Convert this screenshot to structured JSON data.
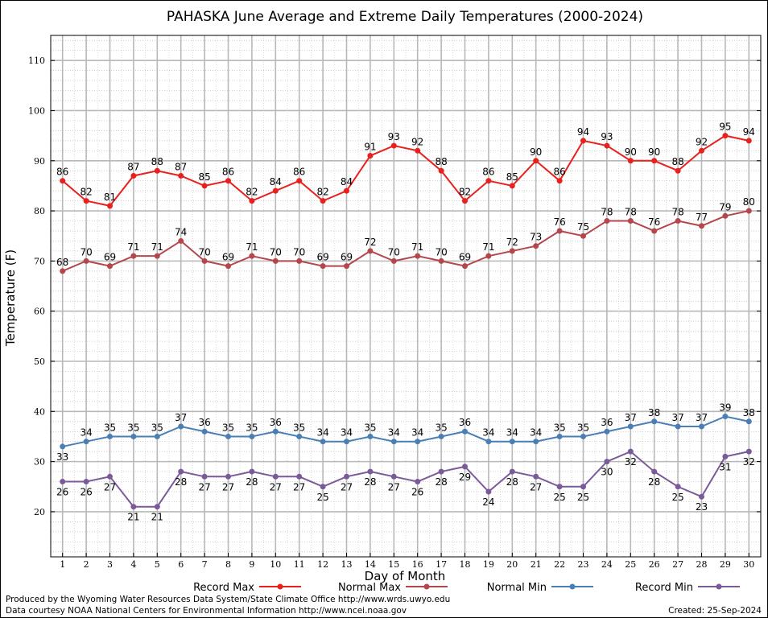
{
  "chart_data": {
    "type": "line",
    "title": "PAHASKA June Average and Extreme Daily Temperatures (2000-2024)",
    "xlabel": "Day of Month",
    "ylabel": "Temperature (F)",
    "xlim": [
      0.5,
      30.5
    ],
    "ylim": [
      11,
      115
    ],
    "yticks": [
      20,
      30,
      40,
      50,
      60,
      70,
      80,
      90,
      100,
      110
    ],
    "x": [
      1,
      2,
      3,
      4,
      5,
      6,
      7,
      8,
      9,
      10,
      11,
      12,
      13,
      14,
      15,
      16,
      17,
      18,
      19,
      20,
      21,
      22,
      23,
      24,
      25,
      26,
      27,
      28,
      29,
      30
    ],
    "grid": true,
    "legend_position": "bottom",
    "series": [
      {
        "name": "Record Max",
        "color": "#e8211f",
        "label_pos": "above",
        "values": [
          86,
          82,
          81,
          87,
          88,
          87,
          85,
          86,
          82,
          84,
          86,
          82,
          84,
          91,
          93,
          92,
          88,
          82,
          86,
          85,
          90,
          86,
          94,
          93,
          90,
          90,
          88,
          92,
          95,
          94
        ]
      },
      {
        "name": "Normal Max",
        "color": "#b5474c",
        "label_pos": "above",
        "values": [
          68,
          70,
          69,
          71,
          71,
          74,
          70,
          69,
          71,
          70,
          70,
          69,
          69,
          72,
          70,
          71,
          70,
          69,
          71,
          72,
          73,
          76,
          75,
          78,
          78,
          76,
          78,
          77,
          79,
          80
        ]
      },
      {
        "name": "Normal Min",
        "color": "#4a7fb5",
        "label_pos": "below-above",
        "values": [
          33,
          34,
          35,
          35,
          35,
          37,
          36,
          35,
          35,
          36,
          35,
          34,
          34,
          35,
          34,
          34,
          35,
          36,
          34,
          34,
          34,
          35,
          35,
          36,
          37,
          38,
          37,
          37,
          39,
          38
        ]
      },
      {
        "name": "Record Min",
        "color": "#7b5a9a",
        "label_pos": "below",
        "values": [
          26,
          26,
          27,
          21,
          21,
          28,
          27,
          27,
          28,
          27,
          27,
          25,
          27,
          28,
          27,
          26,
          28,
          29,
          24,
          28,
          27,
          25,
          25,
          30,
          32,
          28,
          25,
          23,
          31,
          32
        ]
      }
    ]
  },
  "footer": {
    "line1": "Produced by the Wyoming Water Resources Data System/State Climate Office http://www.wrds.uwyo.edu",
    "line2": "Data courtesy NOAA National Centers for Environmental Information http://www.ncei.noaa.gov",
    "created": "Created:  25-Sep-2024"
  }
}
